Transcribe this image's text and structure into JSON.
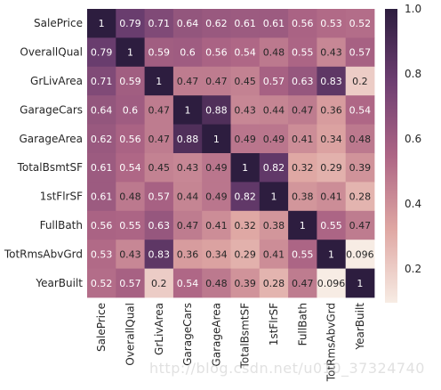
{
  "chart_data": {
    "type": "heatmap",
    "title": "",
    "xlabel": "",
    "ylabel": "",
    "labels": [
      "SalePrice",
      "OverallQual",
      "GrLivArea",
      "GarageCars",
      "GarageArea",
      "TotalBsmtSF",
      "1stFlrSF",
      "FullBath",
      "TotRmsAbvGrd",
      "YearBuilt"
    ],
    "values": [
      [
        1,
        0.79,
        0.71,
        0.64,
        0.62,
        0.61,
        0.61,
        0.56,
        0.53,
        0.52
      ],
      [
        0.79,
        1,
        0.59,
        0.6,
        0.56,
        0.54,
        0.48,
        0.55,
        0.43,
        0.57
      ],
      [
        0.71,
        0.59,
        1,
        0.47,
        0.47,
        0.45,
        0.57,
        0.63,
        0.83,
        0.2
      ],
      [
        0.64,
        0.6,
        0.47,
        1,
        0.88,
        0.43,
        0.44,
        0.47,
        0.36,
        0.54
      ],
      [
        0.62,
        0.56,
        0.47,
        0.88,
        1,
        0.49,
        0.49,
        0.41,
        0.34,
        0.48
      ],
      [
        0.61,
        0.54,
        0.45,
        0.43,
        0.49,
        1,
        0.82,
        0.32,
        0.29,
        0.39
      ],
      [
        0.61,
        0.48,
        0.57,
        0.44,
        0.49,
        0.82,
        1,
        0.38,
        0.41,
        0.28
      ],
      [
        0.56,
        0.55,
        0.63,
        0.47,
        0.41,
        0.32,
        0.38,
        1,
        0.55,
        0.47
      ],
      [
        0.53,
        0.43,
        0.83,
        0.36,
        0.34,
        0.29,
        0.41,
        0.55,
        1,
        0.096
      ],
      [
        0.52,
        0.57,
        0.2,
        0.54,
        0.48,
        0.39,
        0.28,
        0.47,
        0.096,
        1
      ]
    ],
    "colorbar": {
      "range": [
        0.096,
        1.0
      ],
      "ticks": [
        0.2,
        0.4,
        0.6,
        0.8,
        1.0
      ],
      "tick_labels": [
        "0.2",
        "0.4",
        "0.6",
        "0.8",
        "1.0"
      ]
    },
    "colors": {
      "low": "#f7ece4",
      "mid1": "#dfa7a3",
      "mid2": "#ad6585",
      "mid3": "#6e3f72",
      "high": "#2d1d3f"
    }
  },
  "watermark": "http://blog.csdn.net/u010_37324740"
}
